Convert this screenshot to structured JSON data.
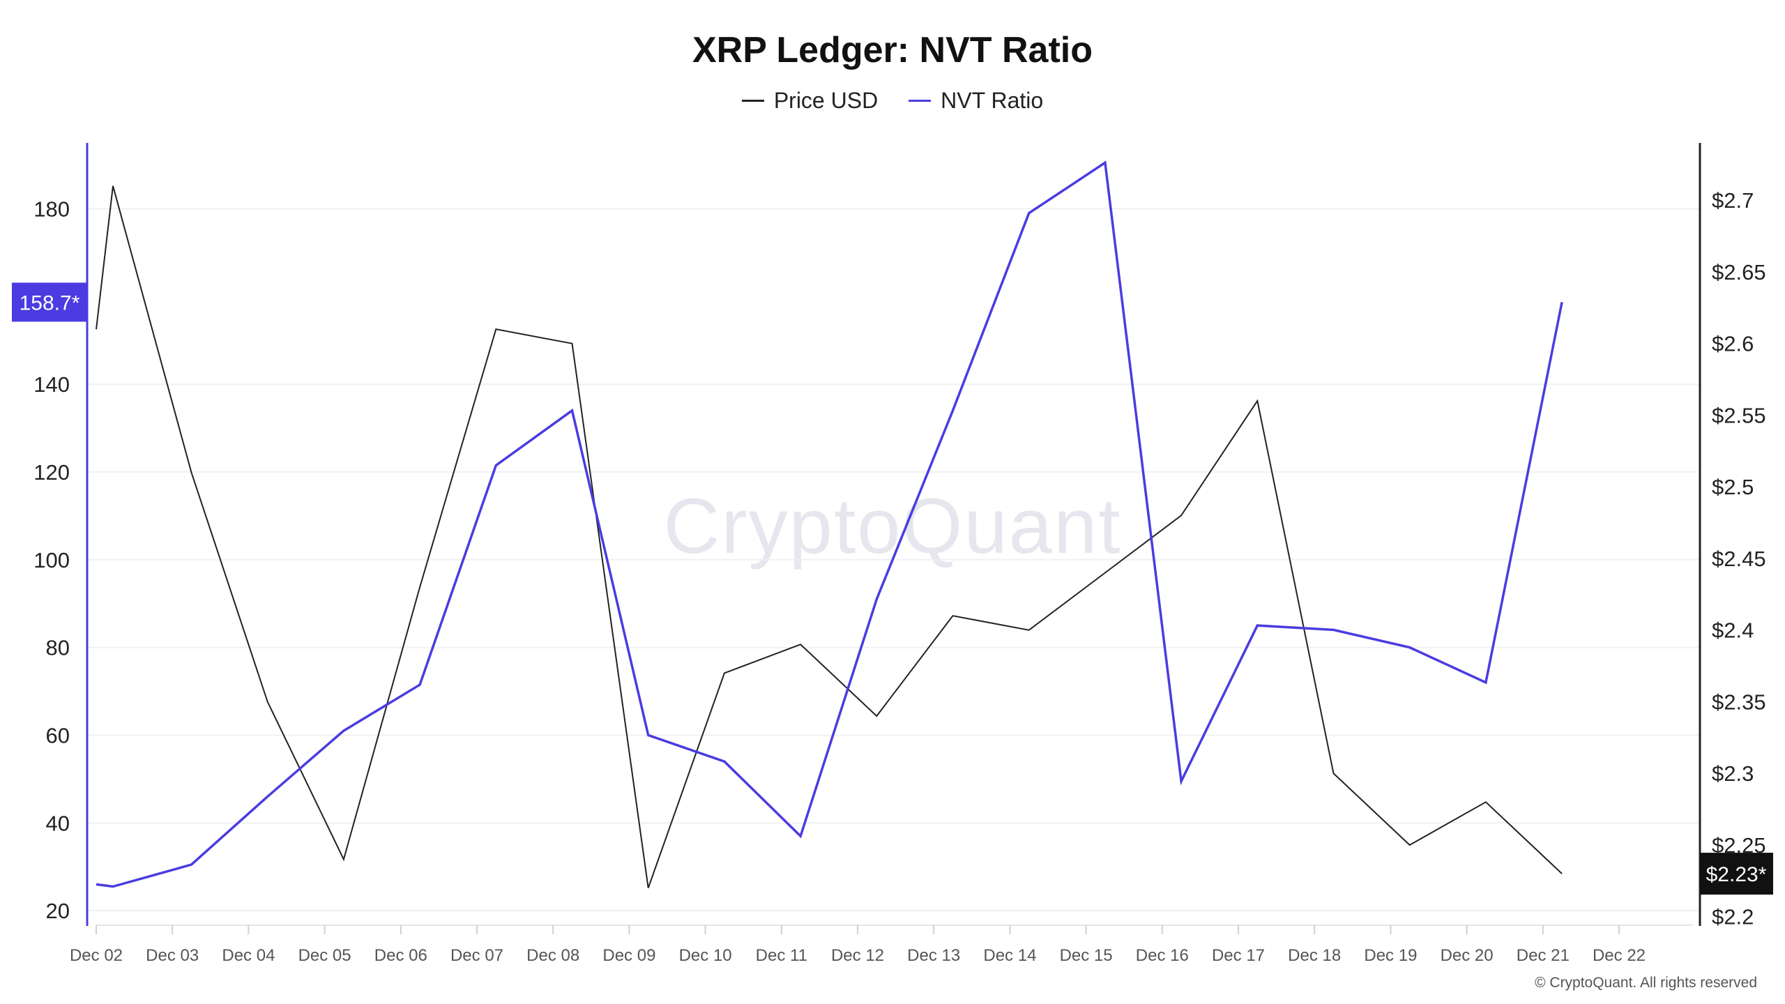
{
  "chart_data": {
    "type": "line",
    "title": "XRP Ledger: NVT Ratio",
    "x": [
      "Dec 02",
      "Dec 03",
      "Dec 04",
      "Dec 05",
      "Dec 06",
      "Dec 07",
      "Dec 08",
      "Dec 09",
      "Dec 10",
      "Dec 11",
      "Dec 12",
      "Dec 13",
      "Dec 14",
      "Dec 15",
      "Dec 16",
      "Dec 17",
      "Dec 18",
      "Dec 19",
      "Dec 20",
      "Dec 21",
      "Dec 22"
    ],
    "series": [
      {
        "name": "Price USD",
        "axis": "right",
        "color": "#222222",
        "x_index": [
          0,
          0.22,
          1.25,
          2.25,
          3.25,
          4.25,
          5.25,
          6.25,
          7.25,
          8.25,
          9.25,
          10.25,
          11.25,
          12.25,
          13.25,
          14.25,
          15.25,
          16.25,
          17.25,
          18.25,
          19.25
        ],
        "values": [
          2.61,
          2.71,
          2.51,
          2.35,
          2.24,
          2.43,
          2.61,
          2.6,
          2.22,
          2.37,
          2.39,
          2.34,
          2.41,
          2.4,
          2.44,
          2.48,
          2.56,
          2.3,
          2.25,
          2.28,
          2.23
        ]
      },
      {
        "name": "NVT Ratio",
        "axis": "left",
        "color": "#4a3ce0",
        "x_index": [
          0,
          0.22,
          1.25,
          2.25,
          3.25,
          4.25,
          5.25,
          6.25,
          7.25,
          8.25,
          9.25,
          10.25,
          11.25,
          12.25,
          13.25,
          14.25,
          15.25,
          16.25,
          17.25,
          18.25,
          19.25
        ],
        "values": [
          26,
          25.5,
          30.5,
          46,
          61,
          71.5,
          121.5,
          134,
          60,
          54,
          37,
          91,
          134,
          179,
          190.5,
          49.5,
          85,
          84,
          80,
          72,
          158.7
        ]
      }
    ],
    "left_axis": {
      "ylim": [
        17,
        195
      ],
      "ticks": [
        20,
        40,
        60,
        80,
        100,
        120,
        140,
        180
      ]
    },
    "right_axis": {
      "ylim": [
        2.195,
        2.74
      ],
      "ticks": [
        "$2.2",
        "$2.25",
        "$2.3",
        "$2.35",
        "$2.4",
        "$2.45",
        "$2.5",
        "$2.55",
        "$2.6",
        "$2.65",
        "$2.7"
      ],
      "tick_values": [
        2.2,
        2.25,
        2.3,
        2.35,
        2.4,
        2.45,
        2.5,
        2.55,
        2.6,
        2.65,
        2.7
      ]
    },
    "left_badge": "158.7*",
    "right_badge": "$2.23*",
    "grid": true,
    "legend_position": "top-center"
  },
  "legend": {
    "price_label": "Price USD",
    "nvt_label": "NVT Ratio",
    "price_color": "#222222",
    "nvt_color": "#4a3ce0"
  },
  "watermark": "CryptoQuant",
  "copyright": "© CryptoQuant. All rights reserved"
}
